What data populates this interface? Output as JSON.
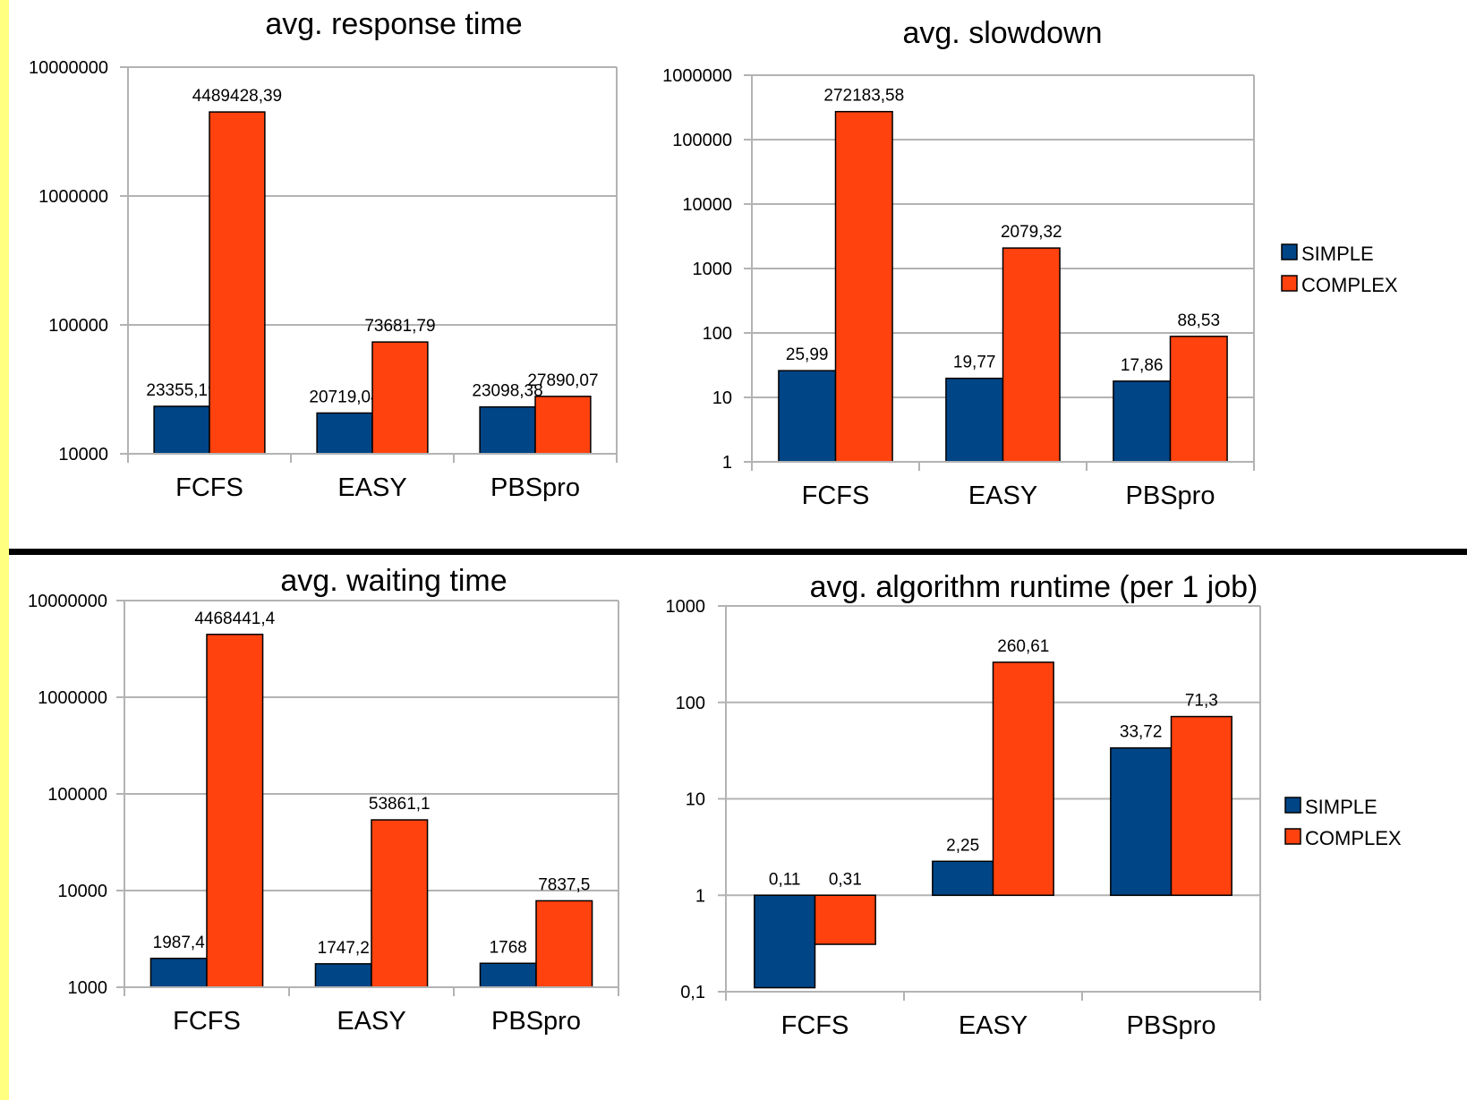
{
  "colors": {
    "simple": "#004586",
    "complex": "#ff420e",
    "grid": "#b3b3b3",
    "axis": "#b3b3b3",
    "divider": "#000000",
    "side_strip": "#ffff80"
  },
  "chart_data": [
    {
      "type": "bar",
      "title": "avg. response time",
      "scale": "log",
      "ylim": [
        10000,
        10000000
      ],
      "yticks": [
        10000,
        100000,
        1000000,
        10000000
      ],
      "ytick_labels": [
        "10000",
        "100000",
        "1000000",
        "10000000"
      ],
      "categories": [
        "FCFS",
        "EASY",
        "PBSpro"
      ],
      "series": [
        {
          "name": "SIMPLE",
          "values": [
            23355.19,
            20719.04,
            23098.38
          ],
          "labels": [
            "23355,19",
            "20719,04",
            "23098,38"
          ]
        },
        {
          "name": "COMPLEX",
          "values": [
            4489428.39,
            73681.79,
            27890.07
          ],
          "labels": [
            "4489428,39",
            "73681,79",
            "27890,07"
          ]
        }
      ],
      "grid": true,
      "legend": null
    },
    {
      "type": "bar",
      "title": "avg. slowdown",
      "scale": "log",
      "ylim": [
        1,
        1000000
      ],
      "yticks": [
        1,
        10,
        100,
        1000,
        10000,
        100000,
        1000000
      ],
      "ytick_labels": [
        "1",
        "10",
        "100",
        "1000",
        "10000",
        "100000",
        "1000000"
      ],
      "categories": [
        "FCFS",
        "EASY",
        "PBSpro"
      ],
      "series": [
        {
          "name": "SIMPLE",
          "values": [
            25.99,
            19.77,
            17.86
          ],
          "labels": [
            "25,99",
            "19,77",
            "17,86"
          ]
        },
        {
          "name": "COMPLEX",
          "values": [
            272183.58,
            2079.32,
            88.53
          ],
          "labels": [
            "272183,58",
            "2079,32",
            "88,53"
          ]
        }
      ],
      "grid": true,
      "legend": "right"
    },
    {
      "type": "bar",
      "title": "avg. waiting time",
      "scale": "log",
      "ylim": [
        1000,
        10000000
      ],
      "yticks": [
        1000,
        10000,
        100000,
        1000000,
        10000000
      ],
      "ytick_labels": [
        "1000",
        "10000",
        "100000",
        "1000000",
        "10000000"
      ],
      "categories": [
        "FCFS",
        "EASY",
        "PBSpro"
      ],
      "series": [
        {
          "name": "SIMPLE",
          "values": [
            1987.4,
            1747.2,
            1768
          ],
          "labels": [
            "1987,4",
            "1747,2",
            "1768"
          ]
        },
        {
          "name": "COMPLEX",
          "values": [
            4468441.4,
            53861.1,
            7837.5
          ],
          "labels": [
            "4468441,4",
            "53861,1",
            "7837,5"
          ]
        }
      ],
      "grid": true,
      "legend": null
    },
    {
      "type": "bar",
      "title": "avg. algorithm runtime (per 1 job)",
      "scale": "log",
      "ylim": [
        0.1,
        1000
      ],
      "yticks": [
        0.1,
        1,
        10,
        100,
        1000
      ],
      "ytick_labels": [
        "0,1",
        "1",
        "10",
        "100",
        "1000"
      ],
      "baseline": 1,
      "categories": [
        "FCFS",
        "EASY",
        "PBSpro"
      ],
      "series": [
        {
          "name": "SIMPLE",
          "values": [
            0.11,
            2.25,
            33.72
          ],
          "labels": [
            "0,11",
            "2,25",
            "33,72"
          ]
        },
        {
          "name": "COMPLEX",
          "values": [
            0.31,
            260.61,
            71.3
          ],
          "labels": [
            "0,31",
            "260,61",
            "71,3"
          ]
        }
      ],
      "grid": true,
      "legend": "right"
    }
  ]
}
